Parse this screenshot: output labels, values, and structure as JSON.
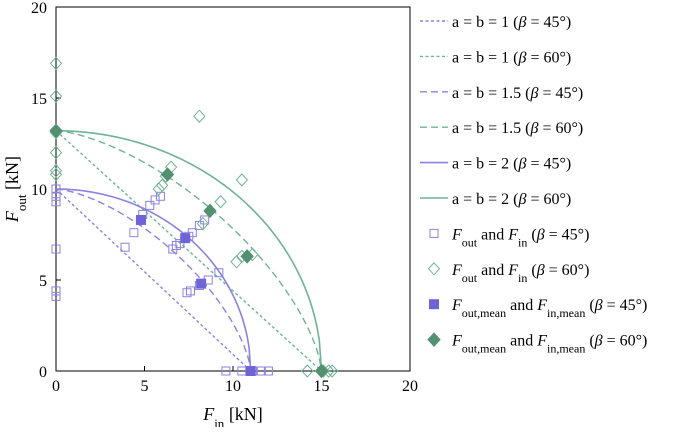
{
  "colors": {
    "purple": "#8B82E0",
    "purple_dark": "#6F64D6",
    "green": "#6EB394",
    "green_dark": "#52906F"
  },
  "chart_data": {
    "type": "scatter",
    "x_axis": {
      "label_main": "F",
      "label_sub": "in",
      "label_unit": " [kN]",
      "min": 0,
      "max": 20,
      "ticks": [
        "0",
        "5",
        "10",
        "15",
        "20"
      ]
    },
    "y_axis": {
      "label_main": "F",
      "label_sub": "out",
      "label_unit": " [kN]",
      "min": 0,
      "max": 20,
      "ticks": [
        "0",
        "5",
        "10",
        "15",
        "20"
      ]
    },
    "grid": false,
    "legend_position": "right",
    "legend": [
      {
        "key": "ab1_45",
        "parts": [
          {
            "t": "a = b = 1 ("
          },
          {
            "t": "β",
            "i": true
          },
          {
            "t": " = 45°)"
          }
        ]
      },
      {
        "key": "ab1_60",
        "parts": [
          {
            "t": "a = b = 1 ("
          },
          {
            "t": "β",
            "i": true
          },
          {
            "t": " = 60°)"
          }
        ]
      },
      {
        "key": "ab15_45",
        "parts": [
          {
            "t": "a = b = 1.5 ("
          },
          {
            "t": "β",
            "i": true
          },
          {
            "t": " = 45°)"
          }
        ]
      },
      {
        "key": "ab15_60",
        "parts": [
          {
            "t": "a = b = 1.5 ("
          },
          {
            "t": "β",
            "i": true
          },
          {
            "t": " = 60°)"
          }
        ]
      },
      {
        "key": "ab2_45",
        "parts": [
          {
            "t": "a = b = 2 ("
          },
          {
            "t": "β",
            "i": true
          },
          {
            "t": " = 45°)"
          }
        ]
      },
      {
        "key": "ab2_60",
        "parts": [
          {
            "t": "a = b = 2 ("
          },
          {
            "t": "β",
            "i": true
          },
          {
            "t": " = 60°)"
          }
        ]
      },
      {
        "key": "pts_45",
        "parts": [
          {
            "t": "F",
            "i": true
          },
          {
            "t": "out",
            "sub": true
          },
          {
            "t": " and "
          },
          {
            "t": "F",
            "i": true
          },
          {
            "t": "in",
            "sub": true
          },
          {
            "t": " ("
          },
          {
            "t": "β",
            "i": true
          },
          {
            "t": " = 45°)"
          }
        ]
      },
      {
        "key": "pts_60",
        "parts": [
          {
            "t": "F",
            "i": true
          },
          {
            "t": "out",
            "sub": true
          },
          {
            "t": " and "
          },
          {
            "t": "F",
            "i": true
          },
          {
            "t": "in",
            "sub": true
          },
          {
            "t": " ("
          },
          {
            "t": "β",
            "i": true
          },
          {
            "t": " = 60°)"
          }
        ]
      },
      {
        "key": "mean_45",
        "parts": [
          {
            "t": "F",
            "i": true
          },
          {
            "t": "out,mean",
            "sub": true
          },
          {
            "t": " and "
          },
          {
            "t": "F",
            "i": true
          },
          {
            "t": "in,mean",
            "sub": true
          },
          {
            "t": " ("
          },
          {
            "t": "β",
            "i": true
          },
          {
            "t": " = 45°)"
          }
        ]
      },
      {
        "key": "mean_60",
        "parts": [
          {
            "t": "F",
            "i": true
          },
          {
            "t": "out,mean",
            "sub": true
          },
          {
            "t": " and "
          },
          {
            "t": "F",
            "i": true
          },
          {
            "t": "in,mean",
            "sub": true
          },
          {
            "t": " ("
          },
          {
            "t": "β",
            "i": true
          },
          {
            "t": " = 60°)"
          }
        ]
      }
    ],
    "curves": [
      {
        "key": "ab1_45",
        "color": "purple",
        "dash": "dotted",
        "a": 1,
        "fin_max": 11,
        "fout_max": 10
      },
      {
        "key": "ab1_60",
        "color": "green",
        "dash": "dotted",
        "a": 1,
        "fin_max": 15,
        "fout_max": 13.2
      },
      {
        "key": "ab15_45",
        "color": "purple",
        "dash": "dashed",
        "a": 1.5,
        "fin_max": 11,
        "fout_max": 10
      },
      {
        "key": "ab15_60",
        "color": "green",
        "dash": "dashed",
        "a": 1.5,
        "fin_max": 15,
        "fout_max": 13.2
      },
      {
        "key": "ab2_45",
        "color": "purple",
        "dash": "solid",
        "a": 2,
        "fin_max": 11,
        "fout_max": 10
      },
      {
        "key": "ab2_60",
        "color": "green",
        "dash": "solid",
        "a": 2,
        "fin_max": 15,
        "fout_max": 13.2
      }
    ],
    "points_45": [
      [
        0,
        10
      ],
      [
        0,
        9.3
      ],
      [
        0,
        9.6
      ],
      [
        0,
        6.7
      ],
      [
        0,
        4.4
      ],
      [
        0,
        4.1
      ],
      [
        3.9,
        6.8
      ],
      [
        4.4,
        7.6
      ],
      [
        4.9,
        8.6
      ],
      [
        5.3,
        9.1
      ],
      [
        5.9,
        9.6
      ],
      [
        5.6,
        9.4
      ],
      [
        6.6,
        6.7
      ],
      [
        6.8,
        6.9
      ],
      [
        7.0,
        7.0
      ],
      [
        7.5,
        7.4
      ],
      [
        7.7,
        7.6
      ],
      [
        8.1,
        8.0
      ],
      [
        8.4,
        8.3
      ],
      [
        7.4,
        4.3
      ],
      [
        7.6,
        4.4
      ],
      [
        8.6,
        5.0
      ],
      [
        9.2,
        5.4
      ],
      [
        8.1,
        4.7
      ],
      [
        9.6,
        0
      ],
      [
        10.5,
        0
      ],
      [
        11.1,
        0
      ],
      [
        11.6,
        0
      ],
      [
        12.0,
        0
      ]
    ],
    "points_60": [
      [
        0,
        16.9
      ],
      [
        0,
        15.1
      ],
      [
        0,
        13.1
      ],
      [
        0,
        12.0
      ],
      [
        0,
        11.0
      ],
      [
        0,
        10.8
      ],
      [
        5.8,
        10.0
      ],
      [
        6.0,
        10.2
      ],
      [
        6.5,
        11.2
      ],
      [
        6.2,
        10.7
      ],
      [
        8.1,
        14.0
      ],
      [
        8.3,
        8.1
      ],
      [
        9.3,
        9.3
      ],
      [
        10.5,
        10.5
      ],
      [
        10.2,
        6.0
      ],
      [
        10.5,
        6.3
      ],
      [
        10.8,
        6.3
      ],
      [
        11.1,
        6.4
      ],
      [
        14.2,
        0
      ],
      [
        15.1,
        0
      ],
      [
        15.4,
        0
      ],
      [
        15.6,
        0
      ]
    ],
    "means_45": [
      [
        4.8,
        8.3
      ],
      [
        7.3,
        7.3
      ],
      [
        8.2,
        4.8
      ],
      [
        11.0,
        0
      ]
    ],
    "means_60": [
      [
        6.3,
        10.8
      ],
      [
        8.7,
        8.8
      ],
      [
        10.8,
        6.3
      ],
      [
        15.0,
        0
      ],
      [
        0,
        13.2
      ]
    ]
  }
}
